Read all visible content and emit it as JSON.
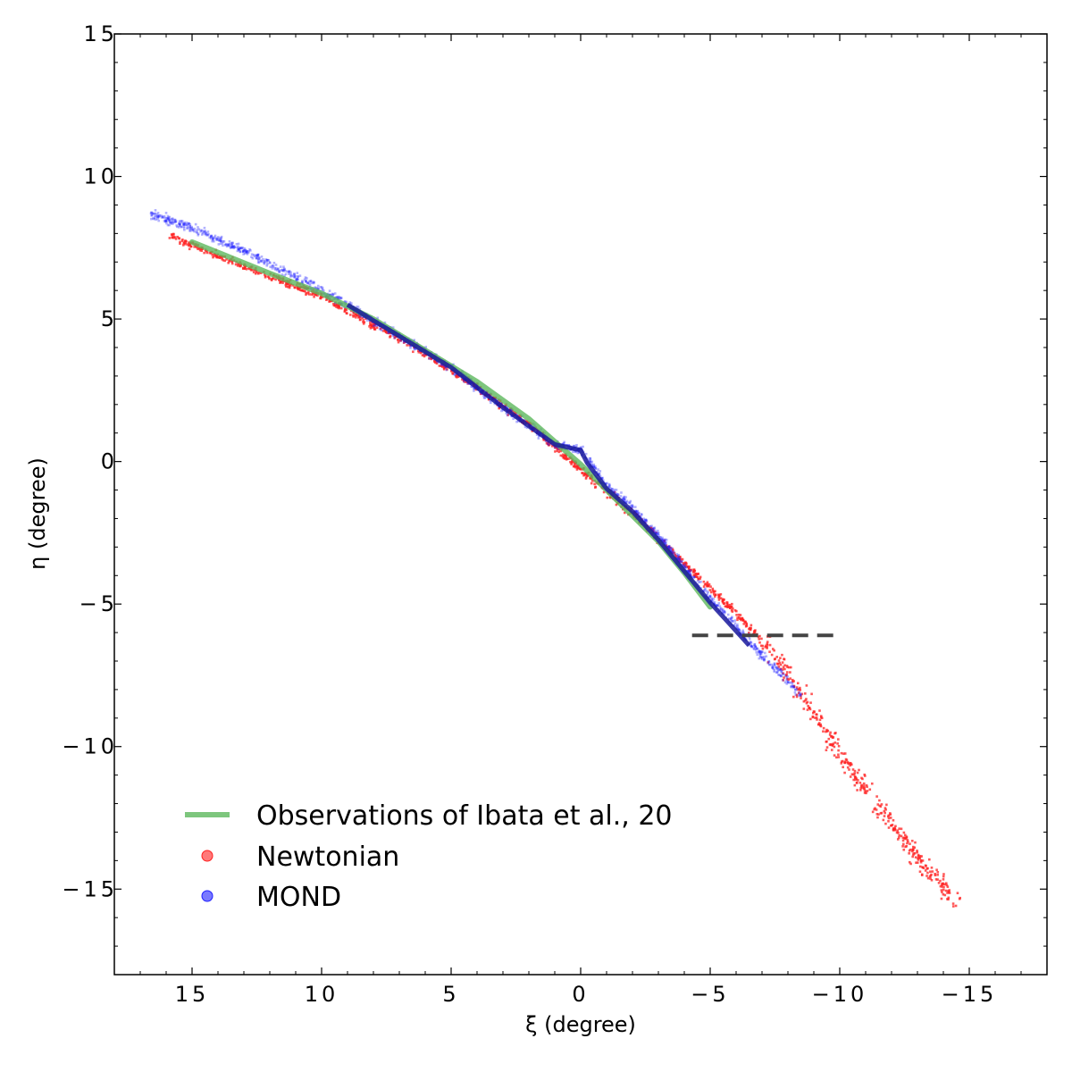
{
  "chart_data": {
    "type": "scatter",
    "title": "",
    "xlabel": "ξ (degree)",
    "ylabel": "η (degree)",
    "xlim": [
      18,
      -18
    ],
    "ylim": [
      -18,
      15
    ],
    "xticks": [
      {
        "value": 15,
        "label": "15"
      },
      {
        "value": 10,
        "label": "10"
      },
      {
        "value": 5,
        "label": "5"
      },
      {
        "value": 0,
        "label": "0"
      },
      {
        "value": -5,
        "label": "−5"
      },
      {
        "value": -10,
        "label": "−10"
      },
      {
        "value": -15,
        "label": "−15"
      }
    ],
    "yticks": [
      {
        "value": 15,
        "label": "15"
      },
      {
        "value": 10,
        "label": "10"
      },
      {
        "value": 5,
        "label": "5"
      },
      {
        "value": 0,
        "label": "0"
      },
      {
        "value": -5,
        "label": "−5"
      },
      {
        "value": -10,
        "label": "−10"
      },
      {
        "value": -15,
        "label": "−15"
      }
    ],
    "grid": false,
    "legend_position": "lower-left",
    "series": [
      {
        "name": "Observations of Ibata et al., 20",
        "kind": "line",
        "color": "#5cb85c",
        "x": [
          15,
          12,
          10,
          8,
          6,
          4,
          2,
          0,
          -1,
          -2,
          -3,
          -4,
          -5
        ],
        "y": [
          7.7,
          6.6,
          5.9,
          5.0,
          3.9,
          2.8,
          1.5,
          -0.1,
          -1.0,
          -1.9,
          -2.8,
          -3.9,
          -5.1
        ]
      },
      {
        "name": "Newtonian",
        "kind": "scatter",
        "color": "#ff2020",
        "x": [
          15.9,
          12,
          10,
          8,
          6,
          4,
          2,
          0,
          -2,
          -4,
          -6,
          -7,
          -8,
          -9,
          -10,
          -11,
          -12,
          -13,
          -14.5
        ],
        "y": [
          7.9,
          6.5,
          5.8,
          4.8,
          3.8,
          2.6,
          1.3,
          -0.3,
          -1.8,
          -3.6,
          -5.3,
          -6.3,
          -7.5,
          -8.8,
          -10.3,
          -11.5,
          -12.7,
          -13.9,
          -15.4
        ]
      },
      {
        "name": "MOND",
        "kind": "scatter",
        "color": "#2020ff",
        "x": [
          16.6,
          15,
          13,
          11,
          9,
          7,
          5,
          3,
          1,
          0,
          -1,
          -2,
          -3,
          -4,
          -5,
          -6,
          -7,
          -8,
          -8.5
        ],
        "y": [
          8.7,
          8.2,
          7.4,
          6.5,
          5.5,
          4.4,
          3.3,
          1.9,
          0.6,
          0.4,
          -0.8,
          -1.6,
          -2.6,
          -3.7,
          -4.8,
          -5.8,
          -6.8,
          -7.7,
          -8.2
        ]
      }
    ],
    "annotations": [
      {
        "type": "dashed-hline",
        "y": -6.1,
        "x_from": -4.3,
        "x_to": -10,
        "color": "#444444"
      }
    ]
  }
}
